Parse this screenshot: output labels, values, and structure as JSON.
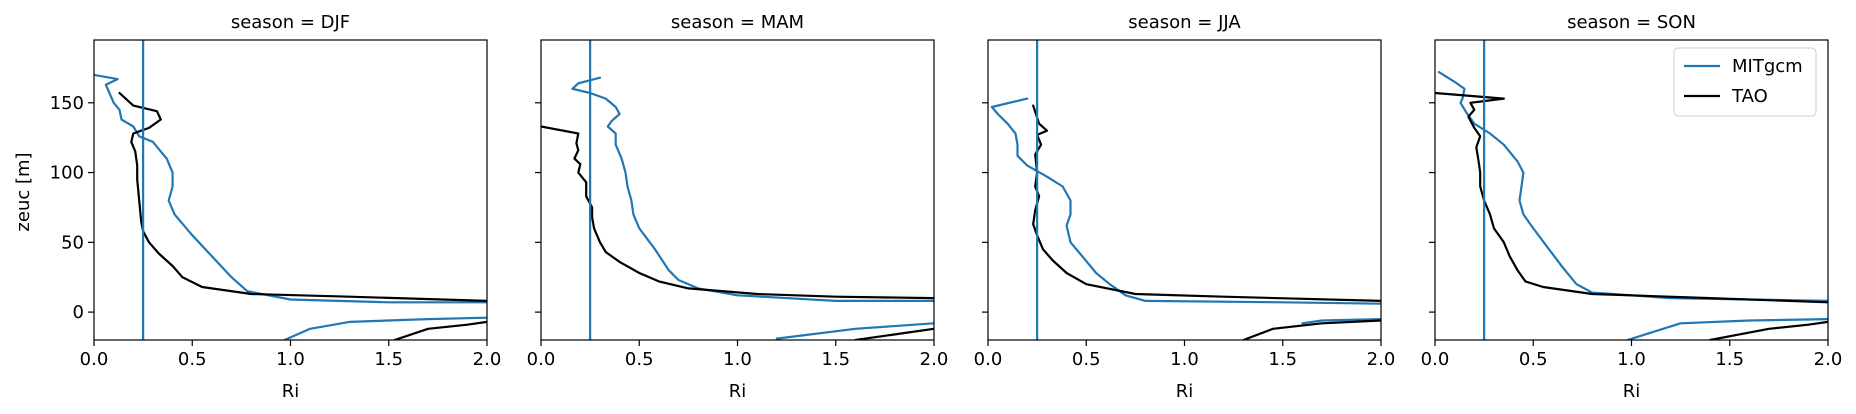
{
  "chart_data": {
    "type": "line",
    "xlabel": "Ri",
    "ylabel": "zeuc [m]",
    "xlim": [
      0,
      2.0
    ],
    "ylim": [
      -20,
      195
    ],
    "x_ticks": [
      "0.0",
      "0.5",
      "1.0",
      "1.5",
      "2.0"
    ],
    "y_ticks": [
      "0",
      "50",
      "100",
      "150"
    ],
    "legend": {
      "placement": "top-right",
      "entries": [
        "MITgcm",
        "TAO"
      ]
    },
    "colors": {
      "MITgcm": "#1f77b4",
      "TAO": "#000000",
      "ref_line": "#1f77b4"
    },
    "reference_line_x": 0.25,
    "panels": [
      {
        "title": "season = DJF",
        "series": [
          {
            "name": "MITgcm",
            "points": [
              [
                0.0,
                170
              ],
              [
                0.12,
                167
              ],
              [
                0.06,
                163
              ],
              [
                0.1,
                150
              ],
              [
                0.13,
                145
              ],
              [
                0.14,
                138
              ],
              [
                0.2,
                133
              ],
              [
                0.23,
                126
              ],
              [
                0.3,
                122
              ],
              [
                0.37,
                110
              ],
              [
                0.4,
                100
              ],
              [
                0.4,
                90
              ],
              [
                0.38,
                80
              ],
              [
                0.41,
                70
              ],
              [
                0.5,
                55
              ],
              [
                0.6,
                40
              ],
              [
                0.7,
                25
              ],
              [
                0.78,
                15
              ],
              [
                1.0,
                9
              ],
              [
                1.5,
                7
              ],
              [
                2.0,
                7
              ]
            ]
          },
          {
            "name": "MITgcm",
            "points": [
              [
                0.97,
                -20
              ],
              [
                1.1,
                -12
              ],
              [
                1.3,
                -7
              ],
              [
                1.7,
                -5
              ],
              [
                2.0,
                -4
              ]
            ]
          },
          {
            "name": "TAO",
            "points": [
              [
                0.13,
                157
              ],
              [
                0.2,
                148
              ],
              [
                0.32,
                144
              ],
              [
                0.34,
                138
              ],
              [
                0.28,
                132
              ],
              [
                0.2,
                128
              ],
              [
                0.19,
                122
              ],
              [
                0.21,
                115
              ],
              [
                0.22,
                105
              ],
              [
                0.22,
                95
              ],
              [
                0.23,
                80
              ],
              [
                0.24,
                65
              ],
              [
                0.25,
                58
              ],
              [
                0.28,
                50
              ],
              [
                0.33,
                42
              ],
              [
                0.4,
                33
              ],
              [
                0.45,
                25
              ],
              [
                0.55,
                18
              ],
              [
                0.8,
                13
              ],
              [
                1.3,
                11
              ],
              [
                2.0,
                8
              ]
            ]
          },
          {
            "name": "TAO",
            "points": [
              [
                1.53,
                -20
              ],
              [
                1.7,
                -12
              ],
              [
                1.9,
                -9
              ],
              [
                2.0,
                -7
              ]
            ]
          }
        ]
      },
      {
        "title": "season = MAM",
        "series": [
          {
            "name": "MITgcm",
            "points": [
              [
                0.3,
                168
              ],
              [
                0.19,
                164
              ],
              [
                0.16,
                160
              ],
              [
                0.25,
                157
              ],
              [
                0.33,
                153
              ],
              [
                0.38,
                147
              ],
              [
                0.4,
                142
              ],
              [
                0.36,
                137
              ],
              [
                0.34,
                133
              ],
              [
                0.38,
                128
              ],
              [
                0.38,
                120
              ],
              [
                0.41,
                110
              ],
              [
                0.43,
                100
              ],
              [
                0.44,
                90
              ],
              [
                0.46,
                80
              ],
              [
                0.47,
                70
              ],
              [
                0.5,
                60
              ],
              [
                0.58,
                45
              ],
              [
                0.65,
                30
              ],
              [
                0.7,
                23
              ],
              [
                0.8,
                17
              ],
              [
                1.0,
                12
              ],
              [
                1.5,
                8
              ],
              [
                2.0,
                8
              ]
            ]
          },
          {
            "name": "MITgcm",
            "points": [
              [
                1.2,
                -19
              ],
              [
                1.6,
                -12
              ],
              [
                2.0,
                -8
              ]
            ]
          },
          {
            "name": "TAO",
            "points": [
              [
                0.0,
                133
              ],
              [
                0.19,
                128
              ],
              [
                0.18,
                121
              ],
              [
                0.19,
                116
              ],
              [
                0.17,
                110
              ],
              [
                0.2,
                106
              ],
              [
                0.19,
                100
              ],
              [
                0.23,
                93
              ],
              [
                0.23,
                83
              ],
              [
                0.26,
                75
              ],
              [
                0.26,
                68
              ],
              [
                0.27,
                60
              ],
              [
                0.3,
                50
              ],
              [
                0.33,
                43
              ],
              [
                0.4,
                36
              ],
              [
                0.5,
                28
              ],
              [
                0.6,
                22
              ],
              [
                0.75,
                17
              ],
              [
                1.1,
                13
              ],
              [
                1.5,
                11
              ],
              [
                2.0,
                10
              ]
            ]
          },
          {
            "name": "TAO",
            "points": [
              [
                1.6,
                -20
              ],
              [
                1.85,
                -15
              ],
              [
                2.0,
                -12
              ]
            ]
          }
        ]
      },
      {
        "title": "season = JJA",
        "series": [
          {
            "name": "MITgcm",
            "points": [
              [
                0.2,
                153
              ],
              [
                0.02,
                147
              ],
              [
                0.05,
                142
              ],
              [
                0.1,
                135
              ],
              [
                0.14,
                128
              ],
              [
                0.15,
                120
              ],
              [
                0.15,
                112
              ],
              [
                0.2,
                105
              ],
              [
                0.3,
                97
              ],
              [
                0.38,
                90
              ],
              [
                0.42,
                80
              ],
              [
                0.42,
                70
              ],
              [
                0.4,
                62
              ],
              [
                0.42,
                50
              ],
              [
                0.48,
                40
              ],
              [
                0.55,
                28
              ],
              [
                0.62,
                20
              ],
              [
                0.7,
                12
              ],
              [
                0.8,
                8
              ],
              [
                1.5,
                7
              ],
              [
                2.0,
                6
              ]
            ]
          },
          {
            "name": "MITgcm",
            "points": [
              [
                1.6,
                -8
              ],
              [
                1.7,
                -6
              ],
              [
                2.0,
                -5
              ]
            ]
          },
          {
            "name": "TAO",
            "points": [
              [
                0.23,
                148
              ],
              [
                0.26,
                135
              ],
              [
                0.3,
                130
              ],
              [
                0.25,
                127
              ],
              [
                0.27,
                120
              ],
              [
                0.24,
                113
              ],
              [
                0.25,
                100
              ],
              [
                0.24,
                90
              ],
              [
                0.26,
                83
              ],
              [
                0.24,
                73
              ],
              [
                0.23,
                63
              ],
              [
                0.25,
                55
              ],
              [
                0.28,
                45
              ],
              [
                0.33,
                37
              ],
              [
                0.4,
                28
              ],
              [
                0.5,
                20
              ],
              [
                0.75,
                13
              ],
              [
                1.2,
                11
              ],
              [
                2.0,
                8
              ]
            ]
          },
          {
            "name": "TAO",
            "points": [
              [
                1.3,
                -20
              ],
              [
                1.45,
                -12
              ],
              [
                1.7,
                -8
              ],
              [
                2.0,
                -6
              ]
            ]
          }
        ]
      },
      {
        "title": "season = SON",
        "series": [
          {
            "name": "MITgcm",
            "points": [
              [
                0.02,
                172
              ],
              [
                0.1,
                165
              ],
              [
                0.15,
                160
              ],
              [
                0.14,
                153
              ],
              [
                0.13,
                150
              ],
              [
                0.16,
                143
              ],
              [
                0.2,
                135
              ],
              [
                0.28,
                128
              ],
              [
                0.35,
                120
              ],
              [
                0.42,
                108
              ],
              [
                0.45,
                100
              ],
              [
                0.44,
                90
              ],
              [
                0.43,
                80
              ],
              [
                0.45,
                70
              ],
              [
                0.5,
                60
              ],
              [
                0.58,
                45
              ],
              [
                0.65,
                32
              ],
              [
                0.72,
                20
              ],
              [
                0.8,
                14
              ],
              [
                1.2,
                10
              ],
              [
                2.0,
                8
              ]
            ]
          },
          {
            "name": "MITgcm",
            "points": [
              [
                0.98,
                -20
              ],
              [
                1.25,
                -8
              ],
              [
                1.6,
                -6
              ],
              [
                2.0,
                -5
              ]
            ]
          },
          {
            "name": "TAO",
            "points": [
              [
                0.0,
                157
              ],
              [
                0.35,
                153
              ],
              [
                0.18,
                150
              ],
              [
                0.2,
                145
              ],
              [
                0.17,
                140
              ],
              [
                0.2,
                132
              ],
              [
                0.23,
                126
              ],
              [
                0.21,
                118
              ],
              [
                0.22,
                110
              ],
              [
                0.23,
                100
              ],
              [
                0.23,
                90
              ],
              [
                0.25,
                80
              ],
              [
                0.28,
                70
              ],
              [
                0.3,
                60
              ],
              [
                0.35,
                50
              ],
              [
                0.38,
                40
              ],
              [
                0.42,
                30
              ],
              [
                0.46,
                22
              ],
              [
                0.55,
                18
              ],
              [
                0.8,
                13
              ],
              [
                1.4,
                10
              ],
              [
                2.0,
                7
              ]
            ]
          },
          {
            "name": "TAO",
            "points": [
              [
                1.4,
                -20
              ],
              [
                1.7,
                -12
              ],
              [
                1.9,
                -9
              ],
              [
                2.0,
                -7
              ]
            ]
          }
        ]
      }
    ]
  }
}
